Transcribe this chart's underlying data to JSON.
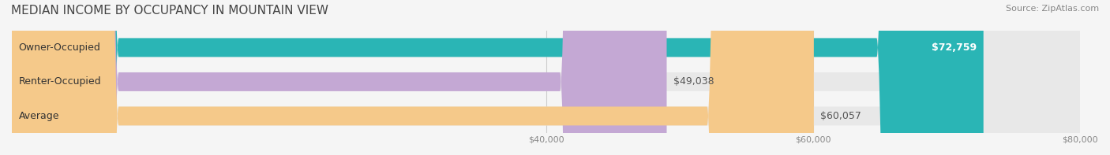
{
  "title": "MEDIAN INCOME BY OCCUPANCY IN MOUNTAIN VIEW",
  "source": "Source: ZipAtlas.com",
  "categories": [
    "Owner-Occupied",
    "Renter-Occupied",
    "Average"
  ],
  "values": [
    72759,
    49038,
    60057
  ],
  "bar_colors": [
    "#2ab5b5",
    "#c4a8d4",
    "#f5c98a"
  ],
  "bar_edge_colors": [
    "#2ab5b5",
    "#c4a8d4",
    "#f5c98a"
  ],
  "label_inside": [
    true,
    false,
    false
  ],
  "value_labels": [
    "$72,759",
    "$49,038",
    "$60,057"
  ],
  "xlim": [
    0,
    80000
  ],
  "xticks": [
    40000,
    60000,
    80000
  ],
  "xticklabels": [
    "$40,000",
    "$60,000",
    "$80,000"
  ],
  "title_fontsize": 11,
  "bar_height": 0.55,
  "background_color": "#f5f5f5",
  "bar_bg_color": "#e8e8e8",
  "category_label_fontsize": 9,
  "value_label_fontsize": 9,
  "source_fontsize": 8
}
